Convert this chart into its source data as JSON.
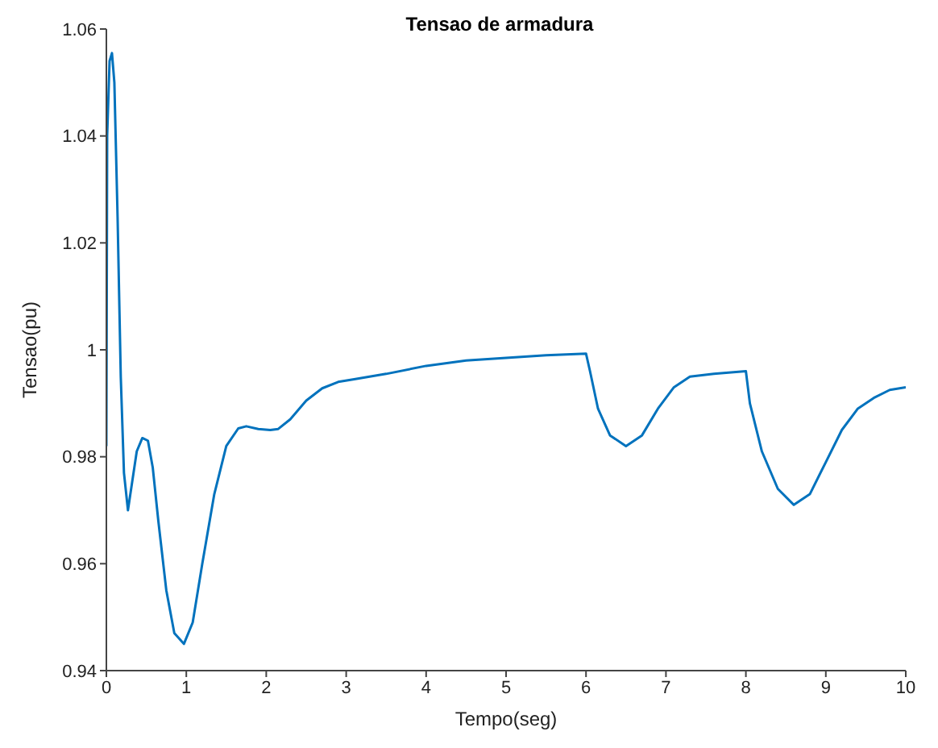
{
  "chart_data": {
    "type": "line",
    "title": "Tensao de armadura",
    "xlabel": "Tempo(seg)",
    "ylabel": "Tensao(pu)",
    "xlim": [
      0,
      10
    ],
    "ylim": [
      0.94,
      1.06
    ],
    "xticks": [
      0,
      1,
      2,
      3,
      4,
      5,
      6,
      7,
      8,
      9,
      10
    ],
    "yticks": [
      0.94,
      0.96,
      0.98,
      1,
      1.02,
      1.04,
      1.06
    ],
    "grid": false,
    "series": [
      {
        "color": "#0072bd",
        "x": [
          0,
          0.01,
          0.04,
          0.07,
          0.1,
          0.14,
          0.18,
          0.22,
          0.27,
          0.32,
          0.38,
          0.45,
          0.52,
          0.58,
          0.65,
          0.75,
          0.85,
          0.97,
          1.08,
          1.2,
          1.35,
          1.5,
          1.65,
          1.75,
          1.9,
          2.05,
          2.15,
          2.3,
          2.5,
          2.7,
          2.9,
          3.1,
          3.5,
          4.0,
          4.5,
          5.0,
          5.5,
          6.0,
          6.05,
          6.15,
          6.3,
          6.5,
          6.7,
          6.9,
          7.1,
          7.3,
          7.6,
          8.0,
          8.05,
          8.2,
          8.4,
          8.6,
          8.8,
          9.0,
          9.2,
          9.4,
          9.6,
          9.8,
          10
        ],
        "values": [
          0.982,
          1.04,
          1.054,
          1.0555,
          1.05,
          1.025,
          0.995,
          0.977,
          0.97,
          0.975,
          0.981,
          0.9835,
          0.983,
          0.978,
          0.968,
          0.955,
          0.947,
          0.945,
          0.949,
          0.96,
          0.973,
          0.982,
          0.9853,
          0.9857,
          0.9852,
          0.985,
          0.9852,
          0.987,
          0.9905,
          0.9928,
          0.994,
          0.9945,
          0.9955,
          0.997,
          0.998,
          0.9985,
          0.999,
          0.9993,
          0.996,
          0.989,
          0.984,
          0.982,
          0.984,
          0.989,
          0.993,
          0.995,
          0.9955,
          0.996,
          0.99,
          0.981,
          0.974,
          0.971,
          0.973,
          0.979,
          0.985,
          0.989,
          0.991,
          0.9925,
          0.993
        ]
      }
    ]
  }
}
